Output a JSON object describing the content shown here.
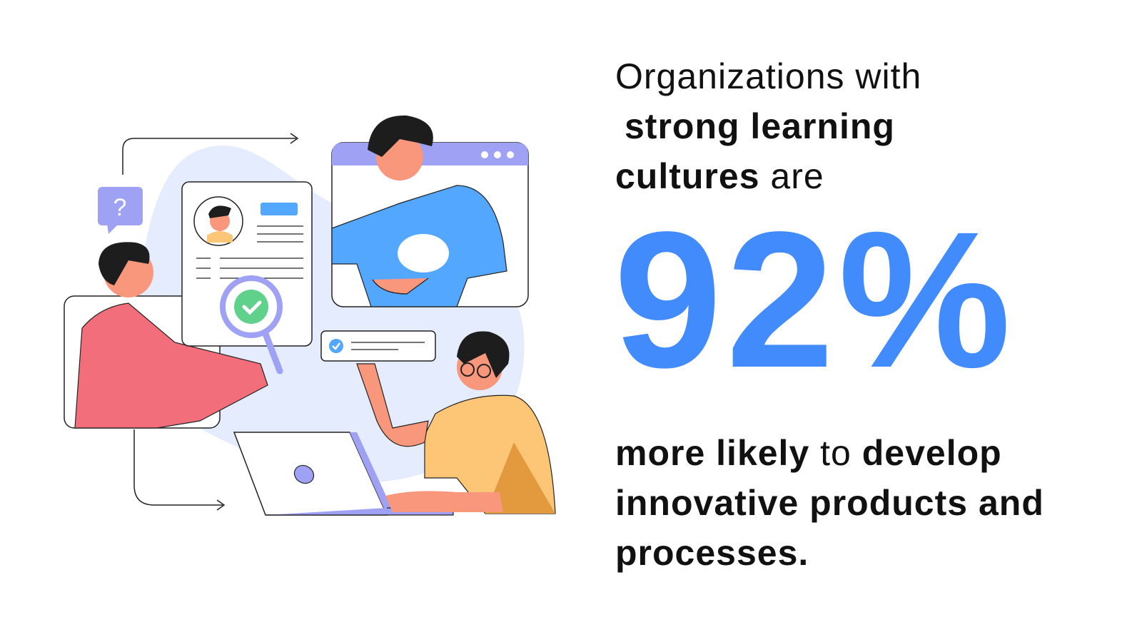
{
  "headline": {
    "line1": "Organizations with",
    "line2_bold": "strong learning",
    "line3_bold": "cultures",
    "line3_rest": " are"
  },
  "stat": {
    "value": "92%",
    "color": "#418bfd"
  },
  "footer": {
    "line1_bold_a": "more likely",
    "line1_mid": " to ",
    "line1_bold_b": "develop",
    "line2_bold": "innovative products and",
    "line3_bold": "processes."
  },
  "illustration": {
    "question_mark": "?",
    "icons": [
      "question-bubble-icon",
      "magnifier-check-icon",
      "checkbox-icon",
      "browser-dots-icon"
    ]
  }
}
